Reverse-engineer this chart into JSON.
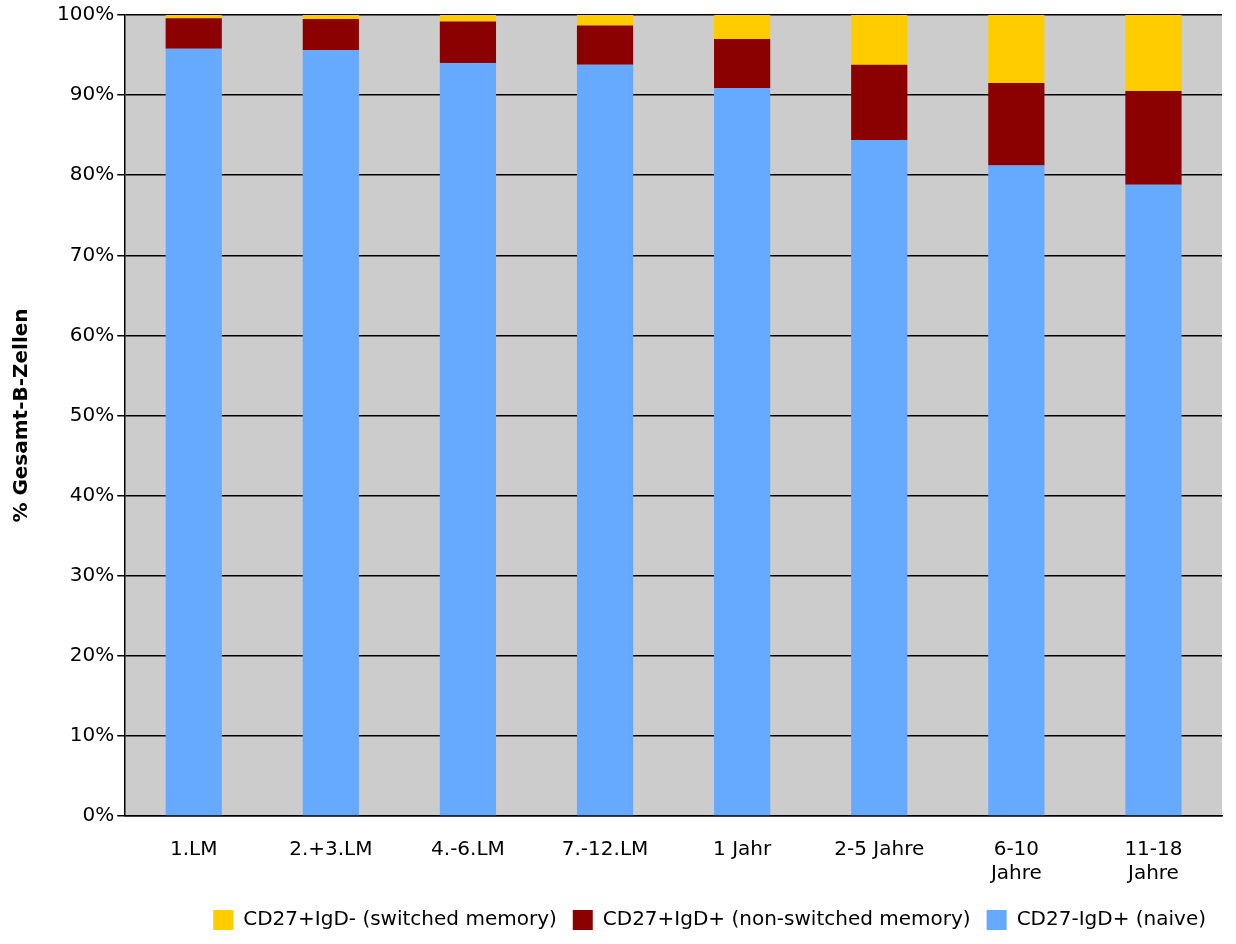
{
  "chart_data": {
    "type": "bar",
    "stacked": true,
    "ylabel": "% Gesamt-B-Zellen",
    "categories": [
      "1.LM",
      "2.+3.LM",
      "4.-6.LM",
      "7.-12.LM",
      "1 Jahr",
      "2-5 Jahre",
      "6-10\nJahre",
      "11-18\nJahre"
    ],
    "series": [
      {
        "name": "CD27-IgD+ (naive)",
        "color": "#66aaff",
        "values": [
          95.8,
          95.6,
          94.0,
          93.8,
          90.9,
          84.4,
          81.2,
          78.8
        ]
      },
      {
        "name": "CD27+IgD+ (non-switched memory)",
        "color": "#8b0000",
        "values": [
          3.8,
          3.9,
          5.2,
          4.9,
          6.1,
          9.4,
          10.3,
          11.7
        ]
      },
      {
        "name": "CD27+IgD- (switched memory)",
        "color": "#ffcc00",
        "values": [
          0.4,
          0.5,
          0.8,
          1.3,
          3.0,
          6.2,
          8.5,
          9.5
        ]
      }
    ],
    "ylim": [
      0,
      100
    ],
    "yticks": [
      {
        "value": 0,
        "label": "0%"
      },
      {
        "value": 10,
        "label": "10%"
      },
      {
        "value": 20,
        "label": "20%"
      },
      {
        "value": 30,
        "label": "30%"
      },
      {
        "value": 40,
        "label": "40%"
      },
      {
        "value": 50,
        "label": "50%"
      },
      {
        "value": 60,
        "label": "60%"
      },
      {
        "value": 70,
        "label": "70%"
      },
      {
        "value": 80,
        "label": "80%"
      },
      {
        "value": 90,
        "label": "90%"
      },
      {
        "value": 100,
        "label": "100%"
      }
    ],
    "grid": "y",
    "legend": "bottom right"
  }
}
